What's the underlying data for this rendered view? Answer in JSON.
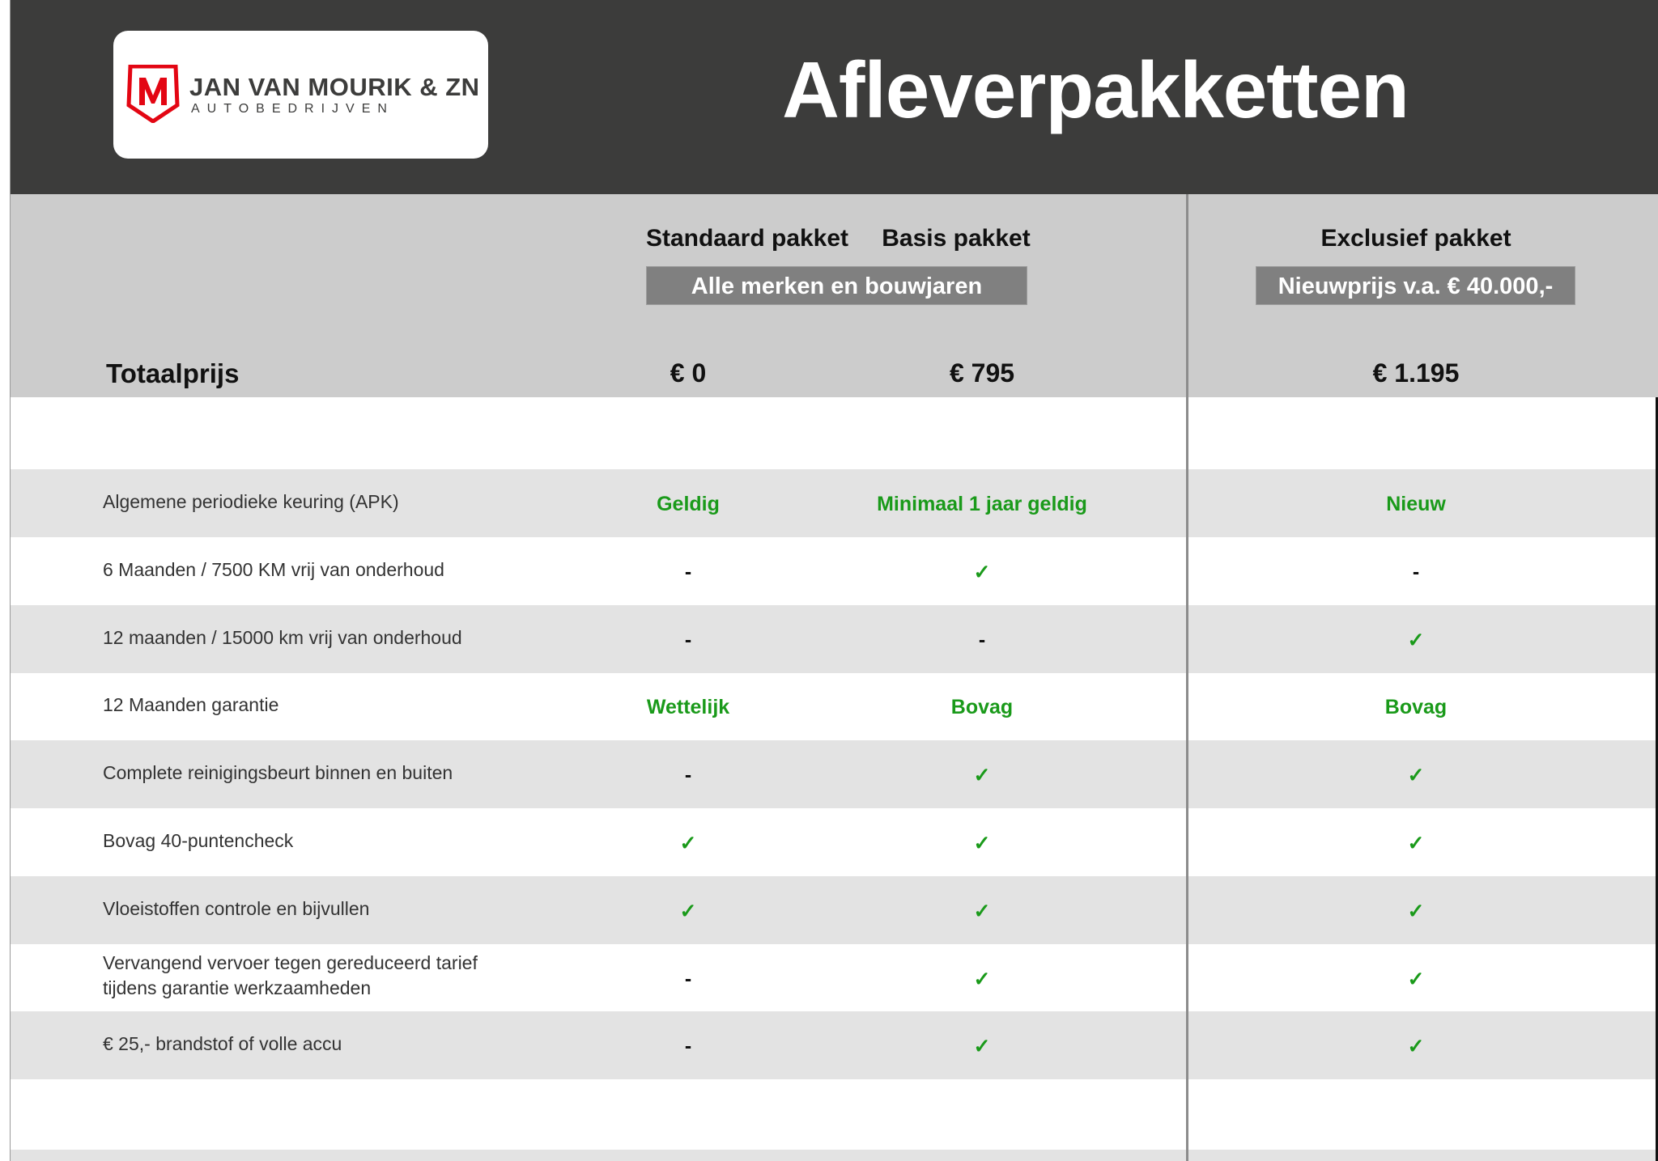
{
  "header": {
    "title": "Afleverpakketten",
    "logo": {
      "name": "JAN VAN MOURIK & ZN",
      "sub": "AUTOBEDRIJVEN",
      "mark": "M"
    }
  },
  "columns": [
    {
      "name": "Standaard pakket",
      "price": "€ 0"
    },
    {
      "name": "Basis pakket",
      "price": "€ 795"
    },
    {
      "name": "Exclusief pakket",
      "price": "€ 1.195"
    }
  ],
  "badges": {
    "standard_basis": "Alle merken en bouwjaren",
    "exclusive": "Nieuwprijs v.a. € 40.000,-"
  },
  "total_label": "Totaalprijs",
  "colors": {
    "header_bg": "#3c3c3b",
    "band_bg": "#cccccc",
    "row_alt": "#e3e3e3",
    "green": "#1a9a1a",
    "logo_red": "#e30613"
  },
  "rows": [
    {
      "label": "Algemene periodieke keuring (APK)",
      "values": [
        "Geldig",
        "Minimaal 1 jaar geldig",
        "Nieuw"
      ]
    },
    {
      "label": "6 Maanden / 7500 KM vrij van onderhoud",
      "values": [
        "-",
        "✓",
        "-"
      ]
    },
    {
      "label": "12 maanden / 15000 km vrij van onderhoud",
      "values": [
        "-",
        "-",
        "✓"
      ]
    },
    {
      "label": "12 Maanden  garantie",
      "values": [
        "Wettelijk",
        "Bovag",
        "Bovag"
      ]
    },
    {
      "label": "Complete reinigingsbeurt binnen en buiten",
      "values": [
        "-",
        "✓",
        "✓"
      ]
    },
    {
      "label": "Bovag 40-puntencheck",
      "values": [
        "✓",
        "✓",
        "✓"
      ]
    },
    {
      "label": "Vloeistoffen controle en bijvullen",
      "values": [
        "✓",
        "✓",
        "✓"
      ]
    },
    {
      "label": "Vervangend vervoer tegen gereduceerd tarief",
      "label2": "tijdens garantie werkzaamheden",
      "values": [
        "-",
        "✓",
        "✓"
      ]
    },
    {
      "label": "€ 25,- brandstof of  volle accu",
      "values": [
        "-",
        "✓",
        "✓"
      ]
    }
  ]
}
